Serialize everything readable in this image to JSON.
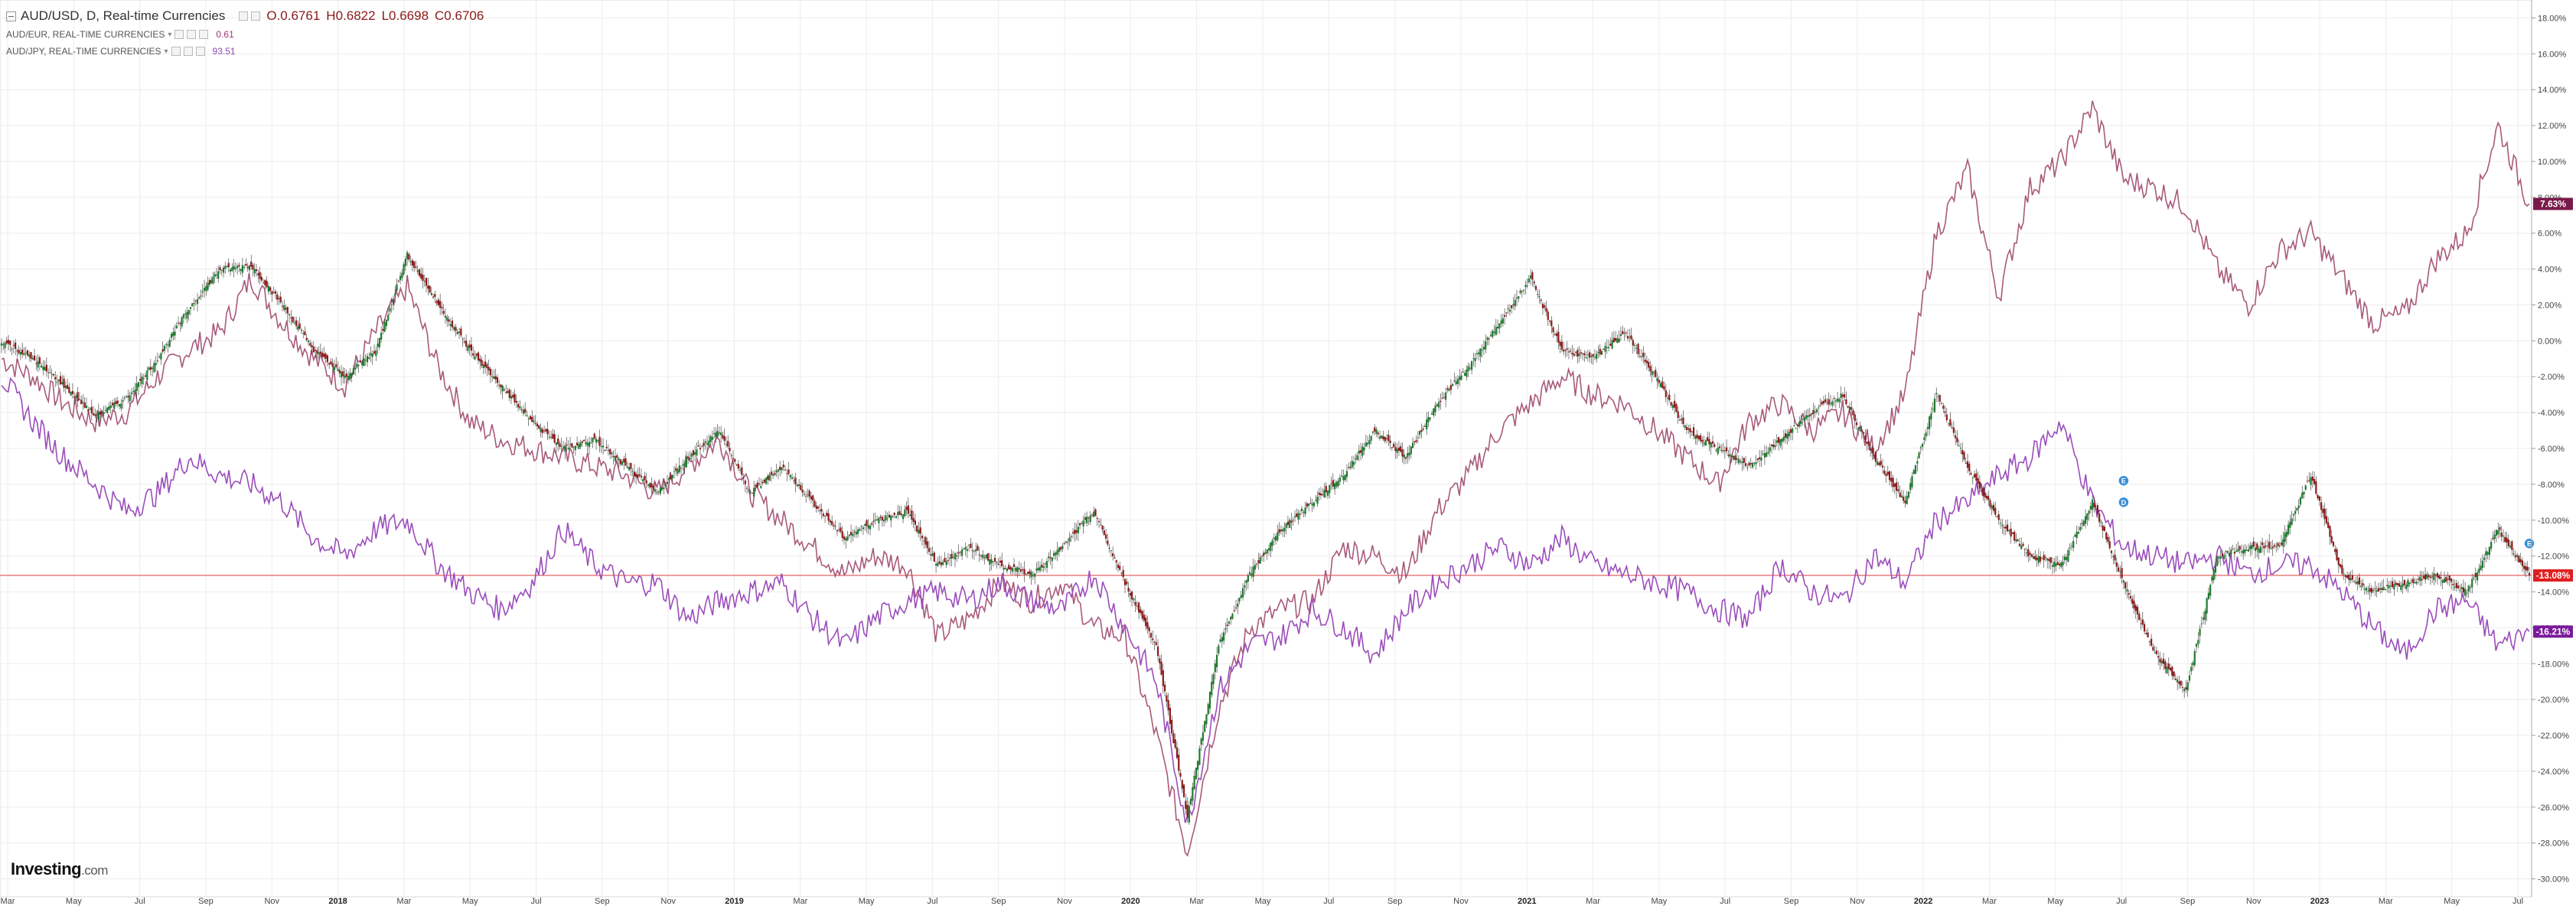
{
  "legend": {
    "main_title": "AUD/USD, D, Real-time Currencies",
    "ohlc": {
      "o": "O.0.6761",
      "h": "H0.6822",
      "l": "L0.6698",
      "c": "C0.6706"
    },
    "series1_label": "AUD/EUR, REAL-TIME CURRENCIES",
    "series1_value": "0.61",
    "series2_label": "AUD/JPY, REAL-TIME CURRENCIES",
    "series2_value": "93.51"
  },
  "logo": {
    "name": "Investing",
    "suffix": ".com"
  },
  "colors": {
    "up": "#1e7a2e",
    "down": "#8b1a1a",
    "aud_eur": "#a85a7a",
    "aud_jpy": "#9b4dbb",
    "baseline": "#e05050",
    "grid": "#ededed"
  },
  "chart_data": {
    "type": "line",
    "y_unit": "percent change",
    "ylim": [
      -31,
      19
    ],
    "y_ticks": [
      "18.00%",
      "16.00%",
      "14.00%",
      "12.00%",
      "10.00%",
      "8.00%",
      "6.00%",
      "4.00%",
      "2.00%",
      "0.00%",
      "-2.00%",
      "-4.00%",
      "-6.00%",
      "-8.00%",
      "-10.00%",
      "-12.00%",
      "-14.00%",
      "-16.00%",
      "-18.00%",
      "-20.00%",
      "-22.00%",
      "-24.00%",
      "-26.00%",
      "-28.00%",
      "-30.00%"
    ],
    "x_ticks": [
      {
        "label": "Mar",
        "bold": false
      },
      {
        "label": "May",
        "bold": false
      },
      {
        "label": "Jul",
        "bold": false
      },
      {
        "label": "Sep",
        "bold": false
      },
      {
        "label": "Nov",
        "bold": false
      },
      {
        "label": "2018",
        "bold": true
      },
      {
        "label": "Mar",
        "bold": false
      },
      {
        "label": "May",
        "bold": false
      },
      {
        "label": "Jul",
        "bold": false
      },
      {
        "label": "Sep",
        "bold": false
      },
      {
        "label": "Nov",
        "bold": false
      },
      {
        "label": "2019",
        "bold": true
      },
      {
        "label": "Mar",
        "bold": false
      },
      {
        "label": "May",
        "bold": false
      },
      {
        "label": "Jul",
        "bold": false
      },
      {
        "label": "Sep",
        "bold": false
      },
      {
        "label": "Nov",
        "bold": false
      },
      {
        "label": "2020",
        "bold": true
      },
      {
        "label": "Mar",
        "bold": false
      },
      {
        "label": "May",
        "bold": false
      },
      {
        "label": "Jul",
        "bold": false
      },
      {
        "label": "Sep",
        "bold": false
      },
      {
        "label": "Nov",
        "bold": false
      },
      {
        "label": "2021",
        "bold": true
      },
      {
        "label": "Mar",
        "bold": false
      },
      {
        "label": "May",
        "bold": false
      },
      {
        "label": "Jul",
        "bold": false
      },
      {
        "label": "Sep",
        "bold": false
      },
      {
        "label": "Nov",
        "bold": false
      },
      {
        "label": "2022",
        "bold": true
      },
      {
        "label": "Mar",
        "bold": false
      },
      {
        "label": "May",
        "bold": false
      },
      {
        "label": "Jul",
        "bold": false
      },
      {
        "label": "Sep",
        "bold": false
      },
      {
        "label": "Nov",
        "bold": false
      },
      {
        "label": "2023",
        "bold": true
      },
      {
        "label": "Mar",
        "bold": false
      },
      {
        "label": "May",
        "bold": false
      },
      {
        "label": "Jul",
        "bold": false
      }
    ],
    "baseline_value": -13.08,
    "last_badges": [
      {
        "series": "AUD/EUR",
        "label": "7.63%",
        "value": 7.63,
        "color": "#7a1a4a"
      },
      {
        "series": "AUD/USD",
        "label": "-13.08%",
        "value": -13.08,
        "color": "#e02020"
      },
      {
        "series": "AUD/JPY",
        "label": "-16.21%",
        "value": -16.21,
        "color": "#7a1a9a"
      }
    ],
    "series": [
      {
        "name": "AUD/USD",
        "style": "candles",
        "values": [
          0.0,
          -1.0,
          -2.5,
          -4.2,
          -3.2,
          -1.0,
          1.8,
          4.0,
          4.2,
          2.0,
          -0.5,
          -2.0,
          -0.5,
          4.8,
          2.0,
          -0.5,
          -2.5,
          -4.5,
          -6.0,
          -5.5,
          -7.0,
          -8.5,
          -6.5,
          -5.0,
          -8.5,
          -7.0,
          -9.0,
          -11.0,
          -10.0,
          -9.5,
          -12.5,
          -11.5,
          -12.5,
          -13.0,
          -11.5,
          -9.5,
          -13.5,
          -17.0,
          -26.5,
          -17.0,
          -13.0,
          -10.5,
          -9.0,
          -7.5,
          -5.0,
          -6.5,
          -3.5,
          -1.5,
          1.0,
          3.5,
          -0.5,
          -1.0,
          0.5,
          -2.0,
          -5.0,
          -6.0,
          -7.0,
          -5.5,
          -4.0,
          -3.0,
          -6.5,
          -9.0,
          -3.0,
          -7.0,
          -10.0,
          -12.0,
          -12.5,
          -9.0,
          -13.5,
          -17.5,
          -19.5,
          -12.0,
          -11.5,
          -11.5,
          -7.5,
          -13.0,
          -14.0,
          -13.5,
          -13.0,
          -14.0,
          -10.5,
          -13.08
        ]
      },
      {
        "name": "AUD/EUR",
        "style": "line",
        "values": [
          -1.0,
          -2.0,
          -3.5,
          -4.5,
          -4.0,
          -2.0,
          -0.5,
          0.5,
          3.5,
          1.0,
          -1.0,
          -2.5,
          0.5,
          3.0,
          -1.5,
          -4.5,
          -5.5,
          -6.0,
          -6.5,
          -7.0,
          -7.5,
          -8.5,
          -7.0,
          -5.5,
          -8.5,
          -10.0,
          -11.5,
          -13.0,
          -12.0,
          -12.5,
          -16.5,
          -15.5,
          -13.5,
          -14.5,
          -13.5,
          -16.0,
          -16.5,
          -22.0,
          -28.5,
          -20.5,
          -16.0,
          -15.0,
          -14.5,
          -11.5,
          -12.0,
          -13.0,
          -9.5,
          -7.5,
          -5.0,
          -3.5,
          -2.0,
          -3.0,
          -3.5,
          -5.0,
          -6.5,
          -8.0,
          -4.5,
          -3.5,
          -5.0,
          -4.0,
          -6.0,
          -3.0,
          6.0,
          9.5,
          2.5,
          8.5,
          10.0,
          13.0,
          9.0,
          8.5,
          7.5,
          4.0,
          2.0,
          5.0,
          6.0,
          3.5,
          1.0,
          1.5,
          4.5,
          6.0,
          12.0,
          7.63
        ]
      },
      {
        "name": "AUD/JPY",
        "style": "line",
        "values": [
          -2.0,
          -4.5,
          -6.5,
          -8.0,
          -9.5,
          -8.5,
          -6.5,
          -7.5,
          -8.0,
          -9.0,
          -11.0,
          -12.0,
          -10.5,
          -10.0,
          -12.5,
          -14.0,
          -15.0,
          -13.5,
          -10.5,
          -12.5,
          -13.5,
          -13.5,
          -15.5,
          -14.5,
          -14.0,
          -13.5,
          -15.5,
          -17.0,
          -15.5,
          -14.5,
          -14.0,
          -14.5,
          -13.5,
          -14.5,
          -15.0,
          -13.0,
          -16.0,
          -19.0,
          -27.0,
          -19.5,
          -17.0,
          -16.5,
          -15.0,
          -16.0,
          -17.5,
          -15.0,
          -13.5,
          -12.5,
          -11.5,
          -12.5,
          -11.0,
          -12.5,
          -13.0,
          -13.5,
          -14.0,
          -15.0,
          -15.5,
          -12.5,
          -14.0,
          -14.5,
          -12.0,
          -13.5,
          -10.0,
          -9.0,
          -7.5,
          -6.5,
          -4.5,
          -9.0,
          -11.5,
          -12.0,
          -12.5,
          -12.0,
          -13.0,
          -12.5,
          -12.5,
          -14.0,
          -16.0,
          -17.5,
          -15.0,
          -14.5,
          -17.0,
          -16.21
        ]
      }
    ],
    "annotations": [
      {
        "label": "E",
        "color": "#3a8fd8",
        "x_index": 68,
        "value": -7.8
      },
      {
        "label": "D",
        "color": "#3a8fd8",
        "x_index": 68,
        "value": -9.0
      },
      {
        "label": "E",
        "color": "#3a8fd8",
        "x_index": 81,
        "value": -11.3
      }
    ]
  }
}
